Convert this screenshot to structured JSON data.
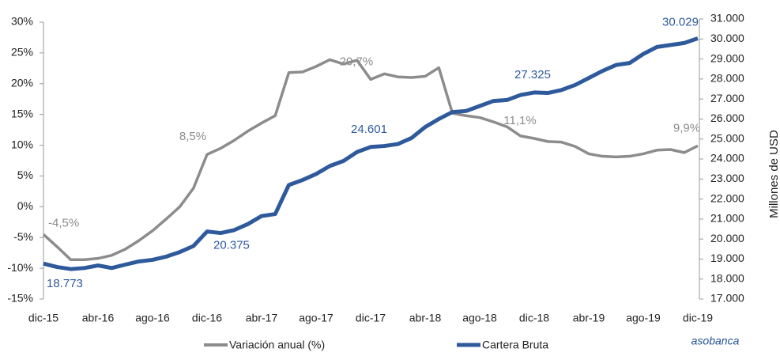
{
  "chart_data": {
    "type": "line",
    "y2_label": "Millones de USD",
    "logo": "asobanca",
    "categories": [
      "dic-15",
      null,
      null,
      null,
      "abr-16",
      null,
      null,
      null,
      "ago-16",
      null,
      null,
      null,
      "dic-16",
      null,
      null,
      null,
      "abr-17",
      null,
      null,
      null,
      "ago-17",
      null,
      null,
      null,
      "dic-17",
      null,
      null,
      null,
      "abr-18",
      null,
      null,
      null,
      "ago-18",
      null,
      null,
      null,
      "dic-18",
      null,
      null,
      null,
      "abr-19",
      null,
      null,
      null,
      "ago-19",
      null,
      null,
      null,
      "dic-19"
    ],
    "series": [
      {
        "name": "Variación anual (%)",
        "color": "#8c8c8c",
        "axis": "y",
        "values": [
          -4.5,
          -6.5,
          -8.6,
          -8.6,
          -8.4,
          -7.9,
          -6.9,
          -5.5,
          -3.9,
          -2.0,
          0.0,
          3.0,
          8.5,
          9.5,
          10.8,
          12.3,
          13.6,
          14.8,
          21.8,
          21.9,
          22.8,
          23.9,
          23.2,
          23.8,
          20.7,
          21.6,
          21.1,
          21.0,
          21.2,
          22.6,
          15.2,
          14.8,
          14.5,
          13.8,
          13.0,
          11.5,
          11.1,
          10.6,
          10.5,
          9.8,
          8.6,
          8.2,
          8.1,
          8.2,
          8.6,
          9.2,
          9.3,
          8.8,
          9.9
        ],
        "value_labels": [
          "-4,5%",
          null,
          null,
          null,
          null,
          null,
          null,
          null,
          null,
          null,
          null,
          null,
          "8,5%",
          null,
          null,
          null,
          null,
          null,
          null,
          null,
          null,
          null,
          null,
          null,
          "20,7%",
          null,
          null,
          null,
          null,
          null,
          null,
          null,
          null,
          null,
          null,
          null,
          "11,1%",
          null,
          null,
          null,
          null,
          null,
          null,
          null,
          null,
          null,
          null,
          null,
          "9,9%"
        ]
      },
      {
        "name": "Cartera Bruta",
        "color": "#2e5a9c",
        "axis": "y2",
        "values": [
          18773,
          18600,
          18500,
          18550,
          18680,
          18550,
          18720,
          18880,
          18960,
          19120,
          19350,
          19650,
          20375,
          20300,
          20450,
          20750,
          21150,
          21250,
          22700,
          22950,
          23250,
          23650,
          23900,
          24350,
          24601,
          24650,
          24750,
          25050,
          25600,
          26000,
          26350,
          26400,
          26650,
          26900,
          26950,
          27200,
          27325,
          27300,
          27450,
          27700,
          28050,
          28400,
          28700,
          28800,
          29250,
          29600,
          29700,
          29800,
          30029
        ],
        "value_labels": [
          "18.773",
          null,
          null,
          null,
          null,
          null,
          null,
          null,
          null,
          null,
          null,
          null,
          "20.375",
          null,
          null,
          null,
          null,
          null,
          null,
          null,
          null,
          null,
          null,
          null,
          "24.601",
          null,
          null,
          null,
          null,
          null,
          null,
          null,
          null,
          null,
          null,
          null,
          "27.325",
          null,
          null,
          null,
          null,
          null,
          null,
          null,
          null,
          null,
          null,
          null,
          "30.029"
        ]
      }
    ],
    "ylim": [
      -15,
      30
    ],
    "yticks": [
      {
        "value": -15,
        "label": "-15%"
      },
      {
        "value": -10,
        "label": "-10%"
      },
      {
        "value": -5,
        "label": "-5%"
      },
      {
        "value": 0,
        "label": "0%"
      },
      {
        "value": 5,
        "label": "5%"
      },
      {
        "value": 10,
        "label": "10%"
      },
      {
        "value": 15,
        "label": "15%"
      },
      {
        "value": 20,
        "label": "20%"
      },
      {
        "value": 25,
        "label": "25%"
      },
      {
        "value": 30,
        "label": "30%"
      }
    ],
    "y2lim": [
      17000,
      31000
    ],
    "y2ticks": [
      {
        "value": 17000,
        "label": "17.000"
      },
      {
        "value": 18000,
        "label": "18.000"
      },
      {
        "value": 19000,
        "label": "19.000"
      },
      {
        "value": 20000,
        "label": "20.000"
      },
      {
        "value": 21000,
        "label": "21.000"
      },
      {
        "value": 22000,
        "label": "22.000"
      },
      {
        "value": 23000,
        "label": "23.000"
      },
      {
        "value": 24000,
        "label": "24.000"
      },
      {
        "value": 25000,
        "label": "25.000"
      },
      {
        "value": 26000,
        "label": "26.000"
      },
      {
        "value": 27000,
        "label": "27.000"
      },
      {
        "value": 28000,
        "label": "28.000"
      },
      {
        "value": 29000,
        "label": "29.000"
      },
      {
        "value": 30000,
        "label": "30.000"
      },
      {
        "value": 31000,
        "label": "31.000"
      }
    ],
    "grid": false,
    "legend": "bottom"
  }
}
